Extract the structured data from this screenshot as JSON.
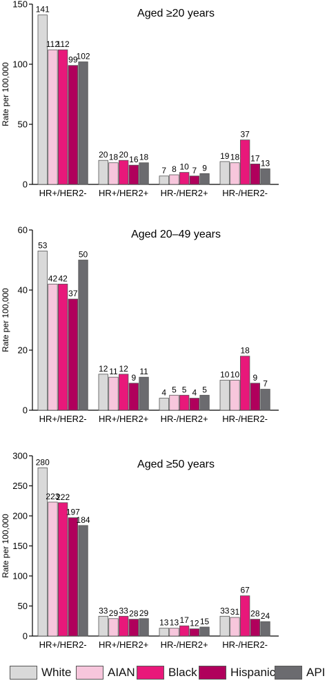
{
  "colors": {
    "White": "#d9d9d9",
    "AIAN": "#f7c6dc",
    "Black": "#e8187a",
    "Hispanic": "#b0005c",
    "API": "#6b6b6f"
  },
  "legend": {
    "items": [
      "White",
      "AIAN",
      "Black",
      "Hispanic",
      "API"
    ]
  },
  "chart_data": [
    {
      "type": "bar",
      "title": "Aged ≥20 years",
      "ylabel": "Rate per 100,000",
      "ylim": [
        0,
        150
      ],
      "yticks": [
        "0",
        "50",
        "100",
        "150"
      ],
      "categories": [
        "HR+/HER2-",
        "HR+/HER2+",
        "HR-/HER2+",
        "HR-/HER2-"
      ],
      "series": [
        {
          "name": "White",
          "values": [
            141,
            20,
            7,
            19
          ]
        },
        {
          "name": "AIAN",
          "values": [
            112,
            18,
            8,
            18
          ]
        },
        {
          "name": "Black",
          "values": [
            112,
            20,
            10,
            37
          ]
        },
        {
          "name": "Hispanic",
          "values": [
            99,
            16,
            7,
            17
          ]
        },
        {
          "name": "API",
          "values": [
            102,
            18,
            9,
            13
          ]
        }
      ]
    },
    {
      "type": "bar",
      "title": "Aged 20–49 years",
      "ylabel": "Rate per 100,000",
      "ylim": [
        0,
        60
      ],
      "yticks": [
        "0",
        "20",
        "40",
        "60"
      ],
      "categories": [
        "HR+/HER2-",
        "HR+/HER2+",
        "HR-/HER2+",
        "HR-/HER2-"
      ],
      "series": [
        {
          "name": "White",
          "values": [
            53,
            12,
            4,
            10
          ]
        },
        {
          "name": "AIAN",
          "values": [
            42,
            11,
            5,
            10
          ]
        },
        {
          "name": "Black",
          "values": [
            42,
            12,
            5,
            18
          ]
        },
        {
          "name": "Hispanic",
          "values": [
            37,
            9,
            4,
            9
          ]
        },
        {
          "name": "API",
          "values": [
            50,
            11,
            5,
            7
          ]
        }
      ]
    },
    {
      "type": "bar",
      "title": "Aged ≥50 years",
      "ylabel": "Rate per 100,000",
      "ylim": [
        0,
        300
      ],
      "yticks": [
        "0",
        "50",
        "100",
        "150",
        "200",
        "250",
        "300"
      ],
      "categories": [
        "HR+/HER2-",
        "HR+/HER2+",
        "HR-/HER2+",
        "HR-/HER2-"
      ],
      "series": [
        {
          "name": "White",
          "values": [
            280,
            33,
            13,
            33
          ]
        },
        {
          "name": "AIAN",
          "values": [
            223,
            29,
            13,
            31
          ]
        },
        {
          "name": "Black",
          "values": [
            222,
            33,
            17,
            67
          ]
        },
        {
          "name": "Hispanic",
          "values": [
            197,
            28,
            12,
            28
          ]
        },
        {
          "name": "API",
          "values": [
            184,
            29,
            15,
            24
          ]
        }
      ]
    }
  ]
}
